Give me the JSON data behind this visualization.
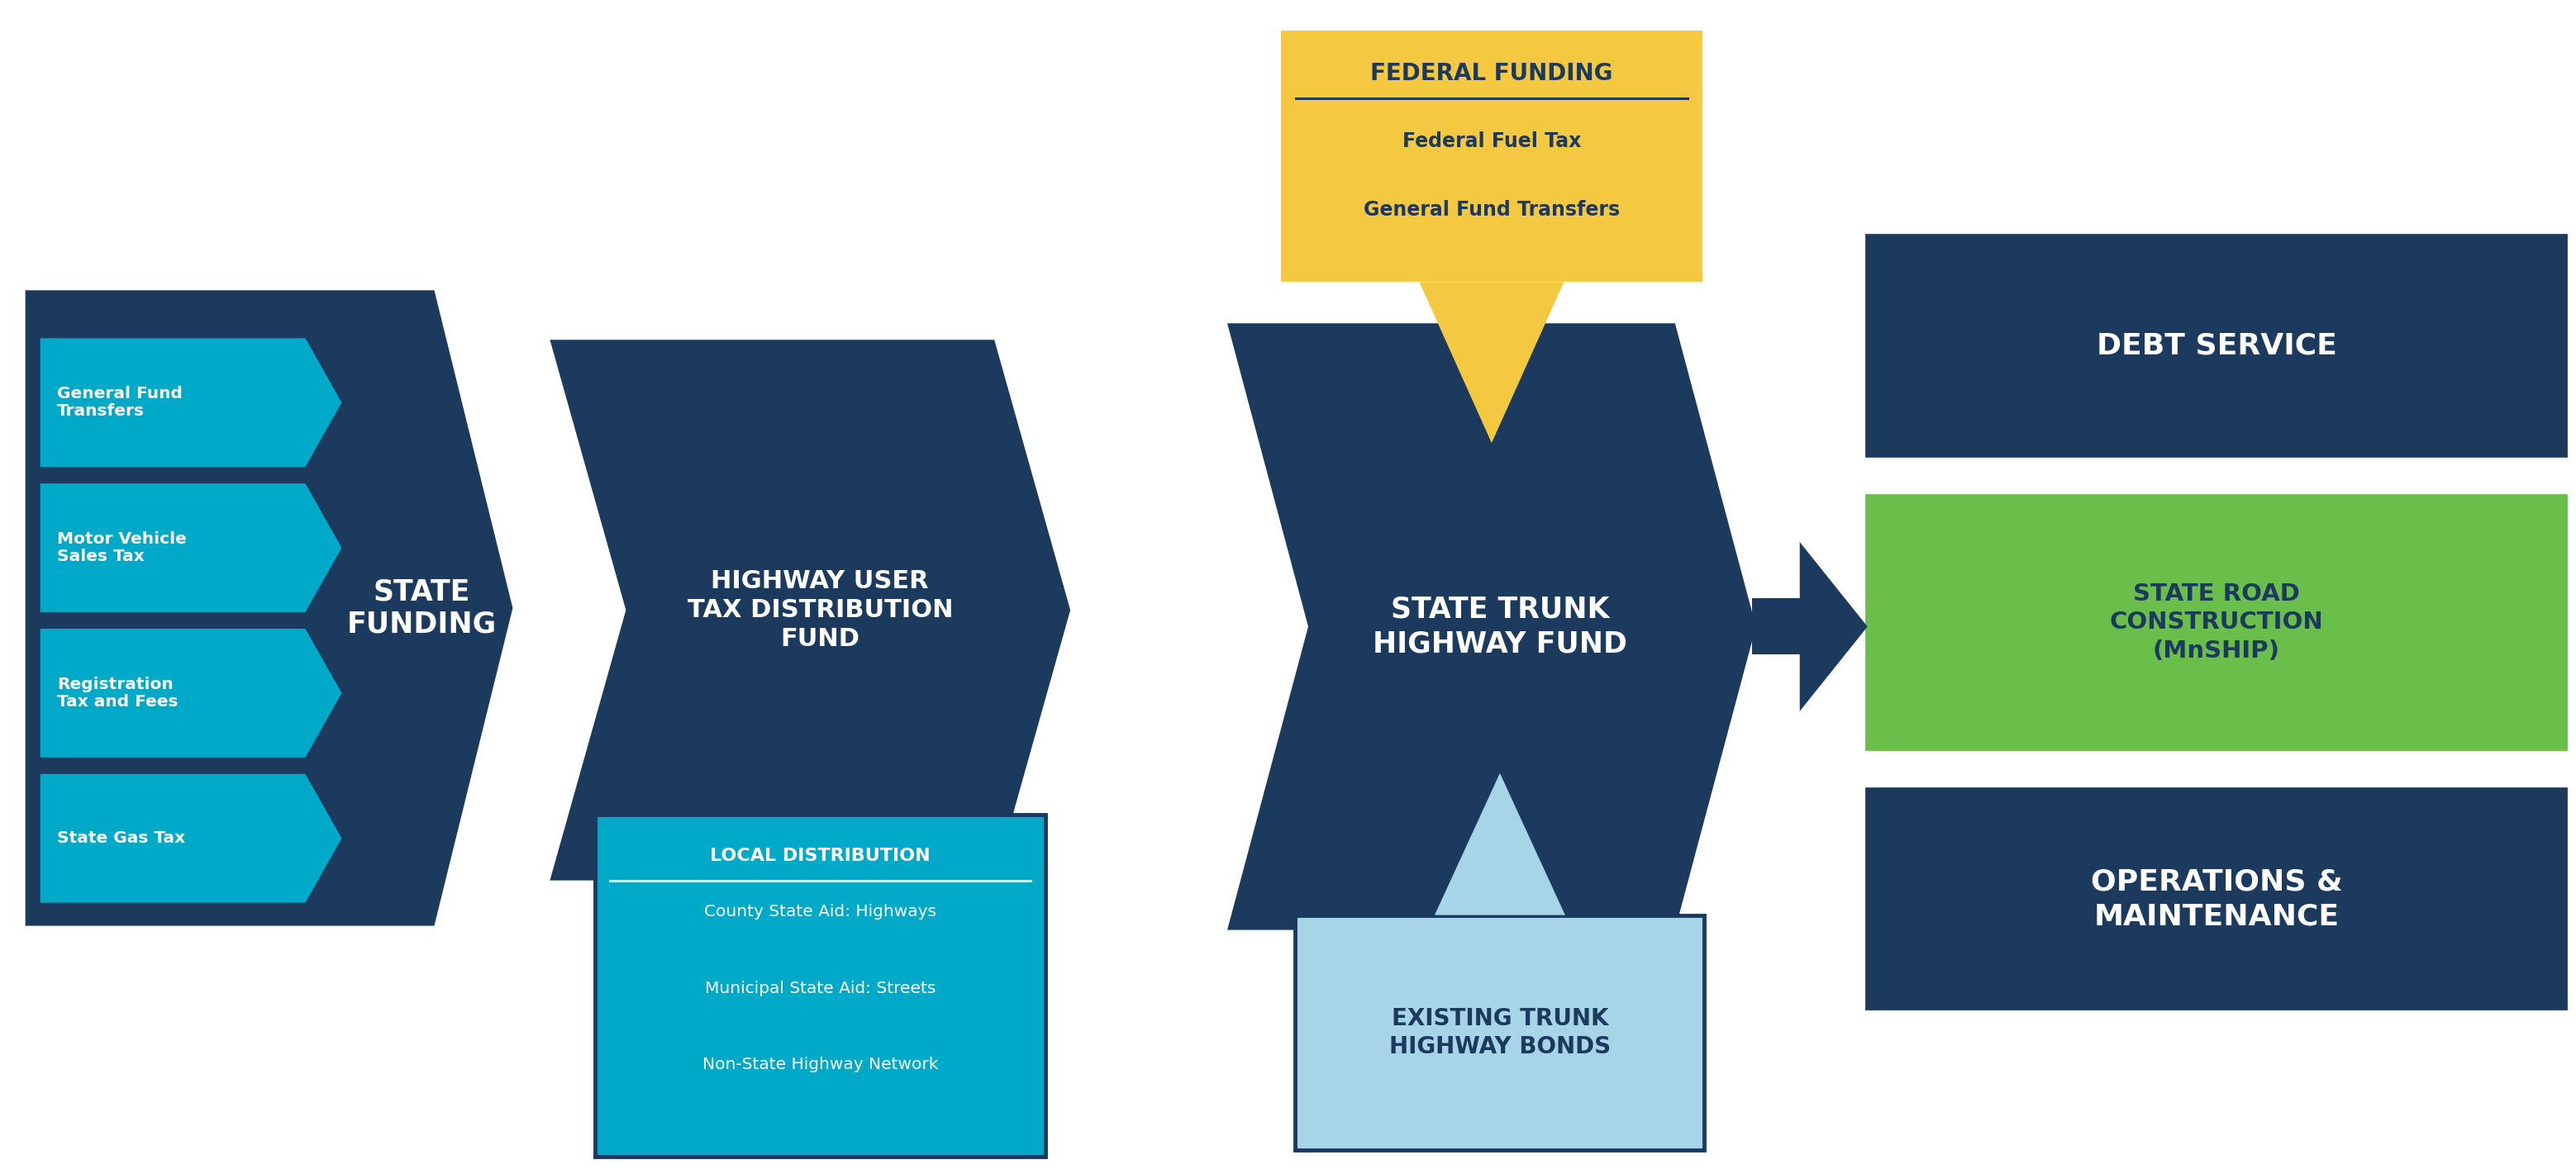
{
  "colors": {
    "dark_navy": "#1b3a5e",
    "cyan": "#00a9c8",
    "yellow": "#f5c842",
    "green": "#6abf4b",
    "light_blue": "#a8d4e8",
    "white": "#ffffff",
    "background": "#ffffff"
  },
  "state_funding_items": [
    "State Gas Tax",
    "Registration\nTax and Fees",
    "Motor Vehicle\nSales Tax",
    "General Fund\nTransfers"
  ],
  "state_funding_label": "STATE\nFUNDING",
  "highway_user_label": "HIGHWAY USER\nTAX DISTRIBUTION\nFUND",
  "state_trunk_label": "STATE TRUNK\nHIGHWAY FUND",
  "federal_funding_title": "FEDERAL FUNDING",
  "federal_funding_lines": [
    "Federal Fuel Tax",
    "General Fund Transfers"
  ],
  "local_dist_title": "LOCAL DISTRIBUTION",
  "local_dist_lines": [
    "County State Aid: Highways",
    "Municipal State Aid: Streets",
    "Non-State Highway Network"
  ],
  "bonds_label": "EXISTING TRUNK\nHIGHWAY BONDS",
  "output_labels": [
    "DEBT SERVICE",
    "STATE ROAD\nCONSTRUCTION\n(MnSHIP)",
    "OPERATIONS &\nMAINTENANCE"
  ],
  "output_colors": [
    "#1b3a5e",
    "#6abf4b",
    "#1b3a5e"
  ],
  "output_text_colors": [
    "#ffffff",
    "#1b3a5e",
    "#ffffff"
  ],
  "output_fontsizes": [
    26,
    21,
    26
  ]
}
